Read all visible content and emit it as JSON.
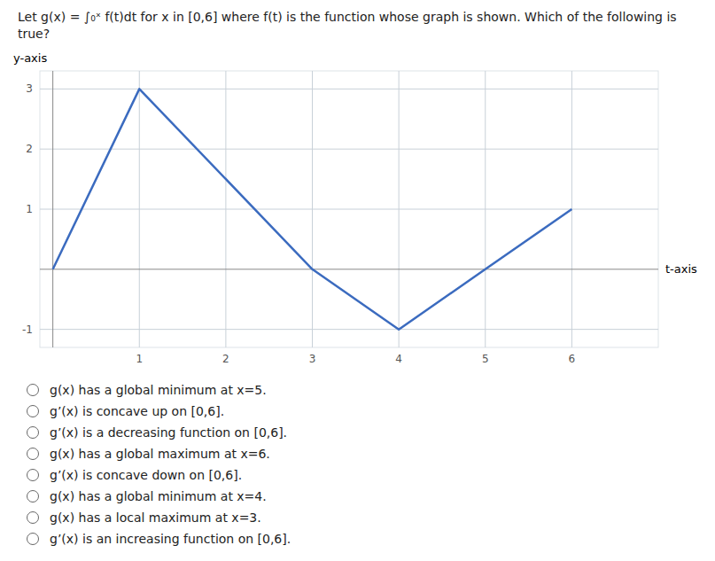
{
  "chart_data": {
    "type": "line",
    "title": "Let g(x) = ∫₀ˣ f(t)dt for x in [0,6] where f(t) is the function whose graph is shown. Which of the following is true?",
    "x_label": "t-axis",
    "y_label": "y-axis",
    "x": [
      0,
      1,
      3,
      4,
      5,
      6
    ],
    "values": [
      0,
      3,
      0,
      -1,
      0,
      1
    ],
    "color": "#3b6bbf",
    "xlim": [
      -0.15,
      7.0
    ],
    "ylim": [
      -1.3,
      3.3
    ],
    "xticks": [
      1,
      2,
      3,
      4,
      5,
      6
    ],
    "yticks": [
      -1,
      1,
      2,
      3
    ],
    "grid": true,
    "annotations": [
      "g(x) has a global minimum at x=5.",
      "g’(x) is concave up on [0,6].",
      "g’(x) is a decreasing function on [0,6].",
      "g(x) has a global maximum at x=6.",
      "g’(x) is concave down on [0,6].",
      "g(x) has a global minimum at x=4.",
      "g(x) has a local maximum at x=3.",
      "g’(x) is an increasing function on [0,6]."
    ]
  }
}
